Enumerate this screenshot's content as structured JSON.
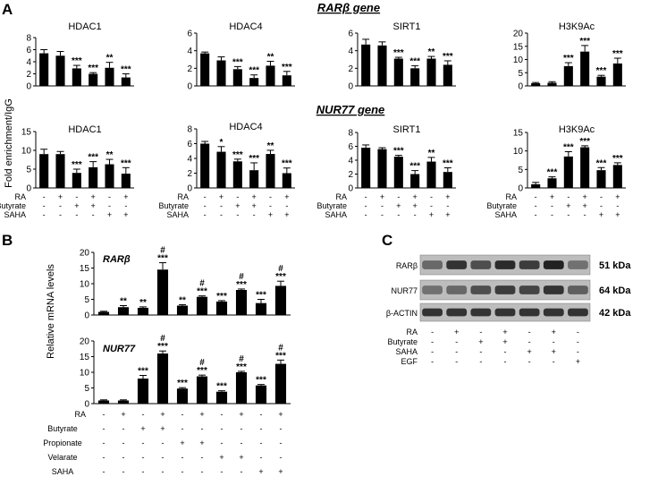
{
  "panels": {
    "A": {
      "letter": "A",
      "ylabel": "Fold enrichment/IgG",
      "row_titles": [
        "RARβ gene",
        "NUR77 gene"
      ],
      "treatments": [
        {
          "name": "RA",
          "values": [
            "-",
            "+",
            "-",
            "+",
            "-",
            "+"
          ]
        },
        {
          "name": "Butyrate",
          "values": [
            "-",
            "-",
            "+",
            "+",
            "-",
            "-"
          ]
        },
        {
          "name": "SAHA",
          "values": [
            "-",
            "-",
            "-",
            "-",
            "+",
            "+"
          ]
        }
      ]
    },
    "B": {
      "letter": "B",
      "ylabel": "Relative mRNA  levels",
      "treatments": [
        {
          "name": "RA",
          "values": [
            "-",
            "+",
            "-",
            "+",
            "-",
            "+",
            "-",
            "+",
            "-",
            "+"
          ]
        },
        {
          "name": "Butyrate",
          "values": [
            "-",
            "-",
            "+",
            "+",
            "-",
            "-",
            "-",
            "-",
            "-",
            "-"
          ]
        },
        {
          "name": "Propionate",
          "values": [
            "-",
            "-",
            "-",
            "-",
            "+",
            "+",
            "-",
            "-",
            "-",
            "-"
          ]
        },
        {
          "name": "Velarate",
          "values": [
            "-",
            "-",
            "-",
            "-",
            "-",
            "-",
            "+",
            "+",
            "-",
            "-"
          ]
        },
        {
          "name": "SAHA",
          "values": [
            "-",
            "-",
            "-",
            "-",
            "-",
            "-",
            "-",
            "-",
            "+",
            "+"
          ]
        }
      ]
    },
    "C": {
      "letter": "C",
      "bands": [
        {
          "name": "RARβ",
          "mw": "51 kDa",
          "intensities": [
            0.55,
            0.85,
            0.7,
            0.9,
            0.8,
            0.95,
            0.5
          ]
        },
        {
          "name": "NUR77",
          "mw": "64 kDa",
          "intensities": [
            0.5,
            0.55,
            0.7,
            0.8,
            0.75,
            0.85,
            0.6
          ]
        },
        {
          "name": "β-ACTIN",
          "mw": "42 kDa",
          "intensities": [
            0.85,
            0.85,
            0.85,
            0.85,
            0.85,
            0.85,
            0.85
          ]
        }
      ],
      "treatments": [
        {
          "name": "RA",
          "values": [
            "-",
            "+",
            "-",
            "+",
            "-",
            "+",
            "-"
          ]
        },
        {
          "name": "Butyrate",
          "values": [
            "-",
            "-",
            "+",
            "+",
            "-",
            "-",
            "-"
          ]
        },
        {
          "name": "SAHA",
          "values": [
            "-",
            "-",
            "-",
            "-",
            "+",
            "+",
            "-"
          ]
        },
        {
          "name": "EGF",
          "values": [
            "-",
            "-",
            "-",
            "-",
            "-",
            "-",
            "+"
          ]
        }
      ]
    }
  },
  "chart_data": [
    {
      "type": "bar",
      "title": "HDAC1",
      "group": "RARβ gene",
      "ylim": [
        0,
        8
      ],
      "yticks": [
        0,
        2,
        4,
        6,
        8
      ],
      "values": [
        5.4,
        5.0,
        2.9,
        2.0,
        3.0,
        1.4
      ],
      "errors": [
        0.6,
        0.7,
        0.5,
        0.2,
        0.9,
        0.6
      ],
      "significance": [
        "",
        "",
        "***",
        "***",
        "**",
        "***"
      ]
    },
    {
      "type": "bar",
      "title": "HDAC4",
      "group": "RARβ gene",
      "ylim": [
        0,
        6
      ],
      "yticks": [
        0,
        2,
        4,
        6
      ],
      "values": [
        3.7,
        2.9,
        1.9,
        0.9,
        2.3,
        1.2
      ],
      "errors": [
        0.15,
        0.4,
        0.3,
        0.35,
        0.5,
        0.45
      ],
      "significance": [
        "",
        "",
        "***",
        "***",
        "**",
        "***"
      ]
    },
    {
      "type": "bar",
      "title": "SIRT1",
      "group": "RARβ gene",
      "ylim": [
        0,
        6
      ],
      "yticks": [
        0,
        2,
        4,
        6
      ],
      "values": [
        4.7,
        4.6,
        3.1,
        2.0,
        3.1,
        2.4
      ],
      "errors": [
        0.6,
        0.4,
        0.15,
        0.3,
        0.25,
        0.45
      ],
      "significance": [
        "",
        "",
        "***",
        "***",
        "**",
        "***"
      ]
    },
    {
      "type": "bar",
      "title": "H3K9Ac",
      "group": "RARβ gene",
      "ylim": [
        0,
        20
      ],
      "yticks": [
        0,
        5,
        10,
        15,
        20
      ],
      "values": [
        1.0,
        1.2,
        7.5,
        13.0,
        3.5,
        8.5
      ],
      "errors": [
        0.3,
        0.4,
        1.3,
        2.3,
        0.5,
        2.0
      ],
      "significance": [
        "",
        "",
        "***",
        "***",
        "***",
        "***"
      ]
    },
    {
      "type": "bar",
      "title": "HDAC1",
      "group": "NUR77 gene",
      "ylim": [
        0,
        15
      ],
      "yticks": [
        0,
        5,
        10,
        15
      ],
      "values": [
        9.0,
        9.0,
        4.0,
        5.5,
        6.3,
        3.8
      ],
      "errors": [
        1.3,
        0.7,
        1.0,
        1.5,
        1.3,
        1.6
      ],
      "significance": [
        "",
        "",
        "***",
        "***",
        "**",
        "***"
      ]
    },
    {
      "type": "bar",
      "title": "HDAC4",
      "group": "NUR77 gene",
      "ylim": [
        0,
        8
      ],
      "yticks": [
        0,
        2,
        4,
        6,
        8
      ],
      "values": [
        6.0,
        4.9,
        3.6,
        2.4,
        4.6,
        2.0
      ],
      "errors": [
        0.3,
        0.7,
        0.3,
        1.0,
        0.5,
        0.7
      ],
      "significance": [
        "",
        "*",
        "***",
        "***",
        "**",
        "***"
      ]
    },
    {
      "type": "bar",
      "title": "SIRT1",
      "group": "NUR77 gene",
      "ylim": [
        0,
        8
      ],
      "yticks": [
        0,
        2,
        4,
        6,
        8
      ],
      "values": [
        5.8,
        5.6,
        4.5,
        2.0,
        3.8,
        2.3
      ],
      "errors": [
        0.4,
        0.2,
        0.2,
        0.5,
        0.6,
        0.6
      ],
      "significance": [
        "",
        "",
        "***",
        "***",
        "**",
        "***"
      ]
    },
    {
      "type": "bar",
      "title": "H3K9Ac",
      "group": "NUR77 gene",
      "ylim": [
        0,
        15
      ],
      "yticks": [
        0,
        5,
        10,
        15
      ],
      "values": [
        1.0,
        2.6,
        8.5,
        11.0,
        4.8,
        6.2
      ],
      "errors": [
        0.5,
        0.4,
        1.3,
        0.4,
        0.7,
        0.6
      ],
      "significance": [
        "",
        "***",
        "***",
        "***",
        "***",
        "***"
      ]
    },
    {
      "type": "bar",
      "title": "RARβ",
      "group": "B",
      "ylim": [
        0,
        20
      ],
      "yticks": [
        0,
        5,
        10,
        15,
        20
      ],
      "values": [
        1.0,
        2.5,
        2.3,
        14.5,
        3.0,
        5.8,
        4.3,
        8.0,
        3.8,
        9.3
      ],
      "errors": [
        0.2,
        0.5,
        0.3,
        2.2,
        0.3,
        0.3,
        0.3,
        0.3,
        1.2,
        1.5
      ],
      "significance": [
        "",
        "**",
        "**",
        "***",
        "**",
        "***",
        "***",
        "***",
        "***",
        "***"
      ],
      "hash": [
        "",
        "",
        "",
        "#",
        "",
        "#",
        "",
        "#",
        "",
        "#"
      ]
    },
    {
      "type": "bar",
      "title": "NUR77",
      "group": "B",
      "ylim": [
        0,
        20
      ],
      "yticks": [
        0,
        5,
        10,
        15,
        20
      ],
      "values": [
        1.0,
        1.0,
        8.0,
        16.0,
        4.8,
        8.7,
        3.8,
        10.0,
        5.8,
        12.7
      ],
      "errors": [
        0.2,
        0.2,
        1.0,
        0.8,
        0.3,
        0.4,
        0.3,
        0.3,
        0.3,
        1.2
      ],
      "significance": [
        "",
        "",
        "***",
        "***",
        "***",
        "***",
        "***",
        "***",
        "***",
        "***"
      ],
      "hash": [
        "",
        "",
        "",
        "#",
        "",
        "#",
        "",
        "#",
        "",
        "#"
      ]
    }
  ]
}
